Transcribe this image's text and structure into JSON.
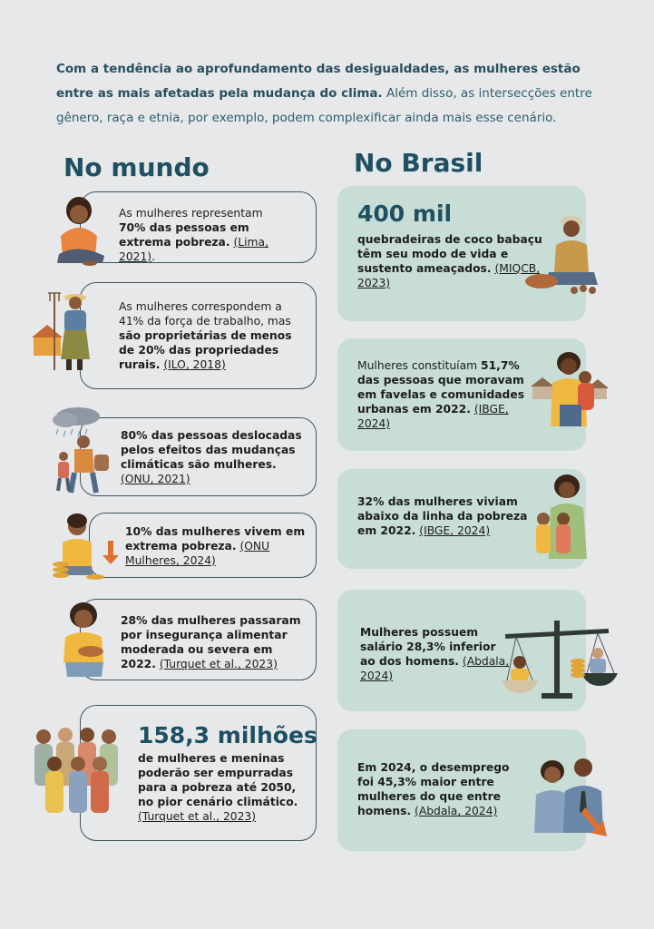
{
  "intro": {
    "bold": "Com a tendência ao aprofundamento das desigualdades, as mulheres estão entre as mais afetadas pela mudança do clima.",
    "rest": "Além disso, as intersecções entre gênero, raça e etnia, por exemplo, podem complexificar ainda mais esse cenário."
  },
  "mundo": {
    "title": "No mundo",
    "cards": [
      {
        "pre": "As mulheres representam",
        "bold": "70% das pessoas em extrema pobreza.",
        "cite": "(Lima, 2021)",
        "post": "."
      },
      {
        "pre": "As mulheres correspondem a 41% da força de trabalho, mas",
        "bold": "são proprietárias de menos de 20% das propriedades rurais.",
        "cite": "(ILO, 2018)",
        "post": ""
      },
      {
        "pre": "",
        "bold": "80% das pessoas deslocadas pelos efeitos das mudanças climáticas são mulheres.",
        "cite": "(ONU, 2021)",
        "post": ""
      },
      {
        "pre": "",
        "bold": "10% das mulheres vivem em extrema pobreza.",
        "cite": "(ONU Mulheres, 2024)",
        "post": ""
      },
      {
        "pre": "",
        "bold": "28% das mulheres passaram por insegurança alimentar moderada ou severa em 2022.",
        "cite": "(Turquet et al., 2023)",
        "post": ""
      },
      {
        "big": "158,3 milhões",
        "pre": "",
        "bold": "de mulheres e meninas poderão ser empurradas para a pobreza até 2050, no pior cenário climático.",
        "cite": "(Turquet et al., 2023)",
        "post": ""
      }
    ]
  },
  "brasil": {
    "title": "No Brasil",
    "cards": [
      {
        "big": "400 mil",
        "pre": "",
        "bold": "quebradeiras de coco babaçu têm seu modo de vida e sustento ameaçados.",
        "cite": "(MIQCB, 2023)",
        "post": ""
      },
      {
        "pre": "Mulheres constituíam",
        "bold": "51,7% das pessoas que moravam em favelas e comunidades urbanas em 2022.",
        "cite": "(IBGE, 2024)",
        "post": ""
      },
      {
        "pre": "",
        "bold": "32% das mulheres viviam abaixo da linha da pobreza em 2022.",
        "cite": "(IBGE, 2024)",
        "post": ""
      },
      {
        "pre": "",
        "bold": "Mulheres possuem salário 28,3% inferior ao dos homens.",
        "cite": "(Abdala, 2024)",
        "post": ""
      },
      {
        "pre": "",
        "bold": "Em 2024, o desemprego foi 45,3% maior entre mulheres do que entre homens.",
        "cite": "(Abdala, 2024)",
        "post": ""
      }
    ]
  },
  "icons": [
    "sitting-woman-icon",
    "farmer-woman-icon",
    "displaced-people-icon",
    "woman-coins-icon",
    "woman-food-bowl-icon",
    "crowd-women-icon",
    "babassu-breaker-icon",
    "favela-mother-icon",
    "mother-children-icon",
    "scale-wage-icon",
    "unemployment-couple-icon"
  ]
}
